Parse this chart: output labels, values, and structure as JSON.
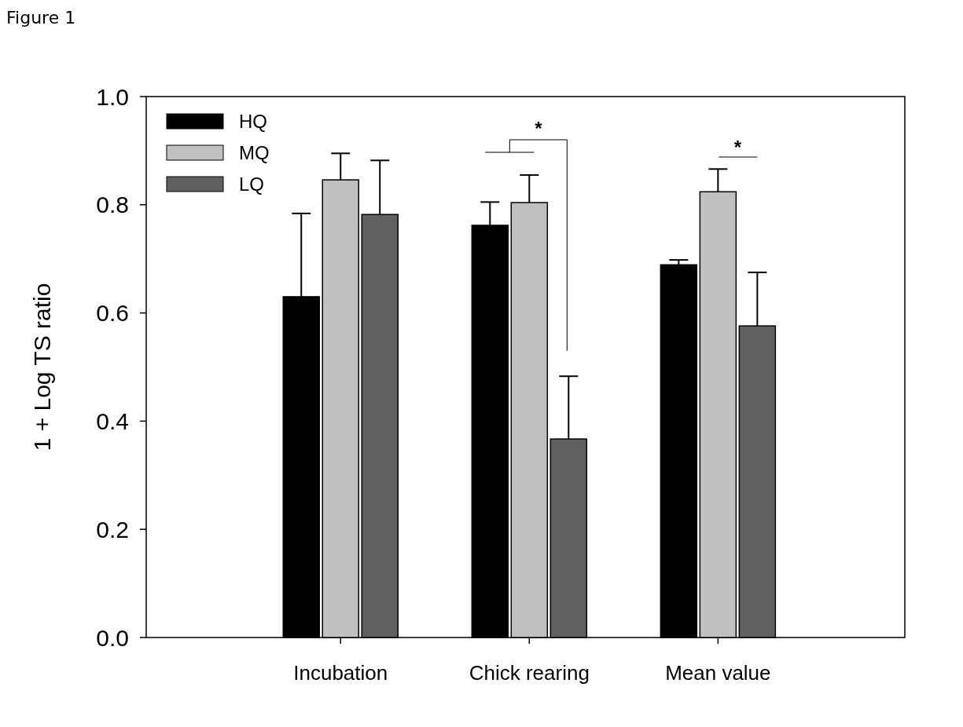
{
  "chart_data": {
    "type": "bar",
    "title": "Figure 1",
    "ylabel": "1 + Log TS ratio",
    "categories": [
      "Incubation",
      "Chick rearing",
      "Mean value"
    ],
    "series": [
      {
        "name": "HQ",
        "color": "#000000",
        "values": [
          0.63,
          0.762,
          0.689
        ],
        "errors": [
          0.154,
          0.043,
          0.009
        ]
      },
      {
        "name": "MQ",
        "color": "#c0c0c0",
        "values": [
          0.846,
          0.804,
          0.824
        ],
        "errors": [
          0.049,
          0.051,
          0.042
        ]
      },
      {
        "name": "LQ",
        "color": "#606060",
        "values": [
          0.782,
          0.367,
          0.576
        ],
        "errors": [
          0.1,
          0.116,
          0.099
        ]
      }
    ],
    "ylim": [
      0,
      1
    ],
    "yticks": [
      {
        "value": 0,
        "label": "0.0"
      },
      {
        "value": 0.2,
        "label": "0.2"
      },
      {
        "value": 0.4,
        "label": "0.4"
      },
      {
        "value": 0.6,
        "label": "0.6"
      },
      {
        "value": 0.8,
        "label": "0.8"
      },
      {
        "value": 1,
        "label": "1.0"
      }
    ],
    "legend": "top left",
    "grid": false,
    "annotations": [
      "*",
      "*"
    ]
  }
}
